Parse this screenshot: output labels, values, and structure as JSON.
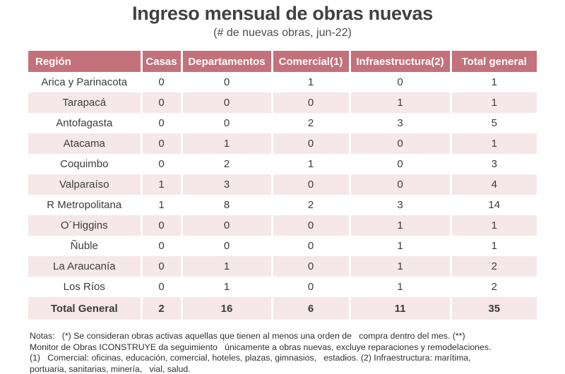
{
  "header": {
    "title": "Ingreso mensual de obras nuevas",
    "subtitle": "(# de nuevas obras, jun-22)"
  },
  "chart_data": {
    "type": "table",
    "title": "Ingreso mensual de obras nuevas",
    "subtitle": "(# de nuevas obras, jun-22)",
    "columns": [
      "Región",
      "Casas",
      "Departamentos",
      "Comercial(1)",
      "Infraestructura(2)",
      "Total general"
    ],
    "rows": [
      [
        "Arica y Parinacota",
        0,
        0,
        1,
        0,
        1
      ],
      [
        "Tarapacá",
        0,
        0,
        0,
        1,
        1
      ],
      [
        "Antofagasta",
        0,
        0,
        2,
        3,
        5
      ],
      [
        "Atacama",
        0,
        1,
        0,
        0,
        1
      ],
      [
        "Coquimbo",
        0,
        2,
        1,
        0,
        3
      ],
      [
        "Valparaíso",
        1,
        3,
        0,
        0,
        4
      ],
      [
        "R Metropolitana",
        1,
        8,
        2,
        3,
        14
      ],
      [
        "O´Higgins",
        0,
        0,
        0,
        1,
        1
      ],
      [
        "Ñuble",
        0,
        0,
        0,
        1,
        1
      ],
      [
        "La Araucanía",
        0,
        1,
        0,
        1,
        2
      ],
      [
        "Los Ríos",
        0,
        1,
        0,
        1,
        2
      ]
    ],
    "total_row": [
      "Total General",
      2,
      16,
      6,
      11,
      35
    ]
  },
  "notes": {
    "lines": [
      "Notas:   (*) Se consideran obras activas aquellas que tienen al menos una orden de   compra dentro del mes. (**)",
      "Monitor de Obras ICONSTRUYE da seguimiento   únicamente a obras nuevas, excluye reparaciones y remodelaciones.",
      "(1)   Comercial: oficinas, educación, comercial, hoteles, plazas, gimnasios,   estadios. (2) Infraestructura: marítima,",
      "portuaria, sanitarias, minería,   vial, salud."
    ]
  },
  "colors": {
    "header_bg": "#c3717a",
    "row_alt_bg": "#f6e8e8",
    "header_text": "#ffffff",
    "body_text": "#3c3c3c"
  }
}
